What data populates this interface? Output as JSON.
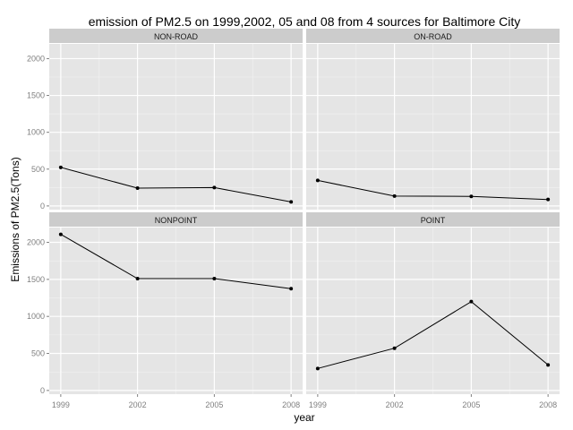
{
  "chart_data": {
    "type": "line",
    "title": "emission of PM2.5 on 1999,2002, 05 and 08 from 4 sources for Baltimore City",
    "xlabel": "year",
    "ylabel": "Emissions of PM2.5(Tons)",
    "x": [
      1999,
      2002,
      2005,
      2008
    ],
    "x_tick_labels": [
      "1999",
      "2002",
      "2005",
      "2008"
    ],
    "y_tick_labels": [
      "0",
      "500",
      "1000",
      "1500",
      "2000"
    ],
    "ylim": [
      -50,
      2200
    ],
    "grid": true,
    "facet_layout": "2x2",
    "facets": [
      {
        "name": "NON-ROAD",
        "values": [
          523,
          242,
          249,
          55
        ]
      },
      {
        "name": "ON-ROAD",
        "values": [
          347,
          134,
          130,
          88
        ]
      },
      {
        "name": "NONPOINT",
        "values": [
          2108,
          1510,
          1510,
          1374
        ]
      },
      {
        "name": "POINT",
        "values": [
          297,
          570,
          1200,
          345
        ]
      }
    ],
    "colors": {
      "panel_bg": "#e5e5e5",
      "strip_bg": "#cccccc",
      "major_grid": "#ffffff",
      "minor_grid": "#f2f2f2",
      "line": "#000000",
      "tick_text": "#7f7f7f"
    }
  }
}
